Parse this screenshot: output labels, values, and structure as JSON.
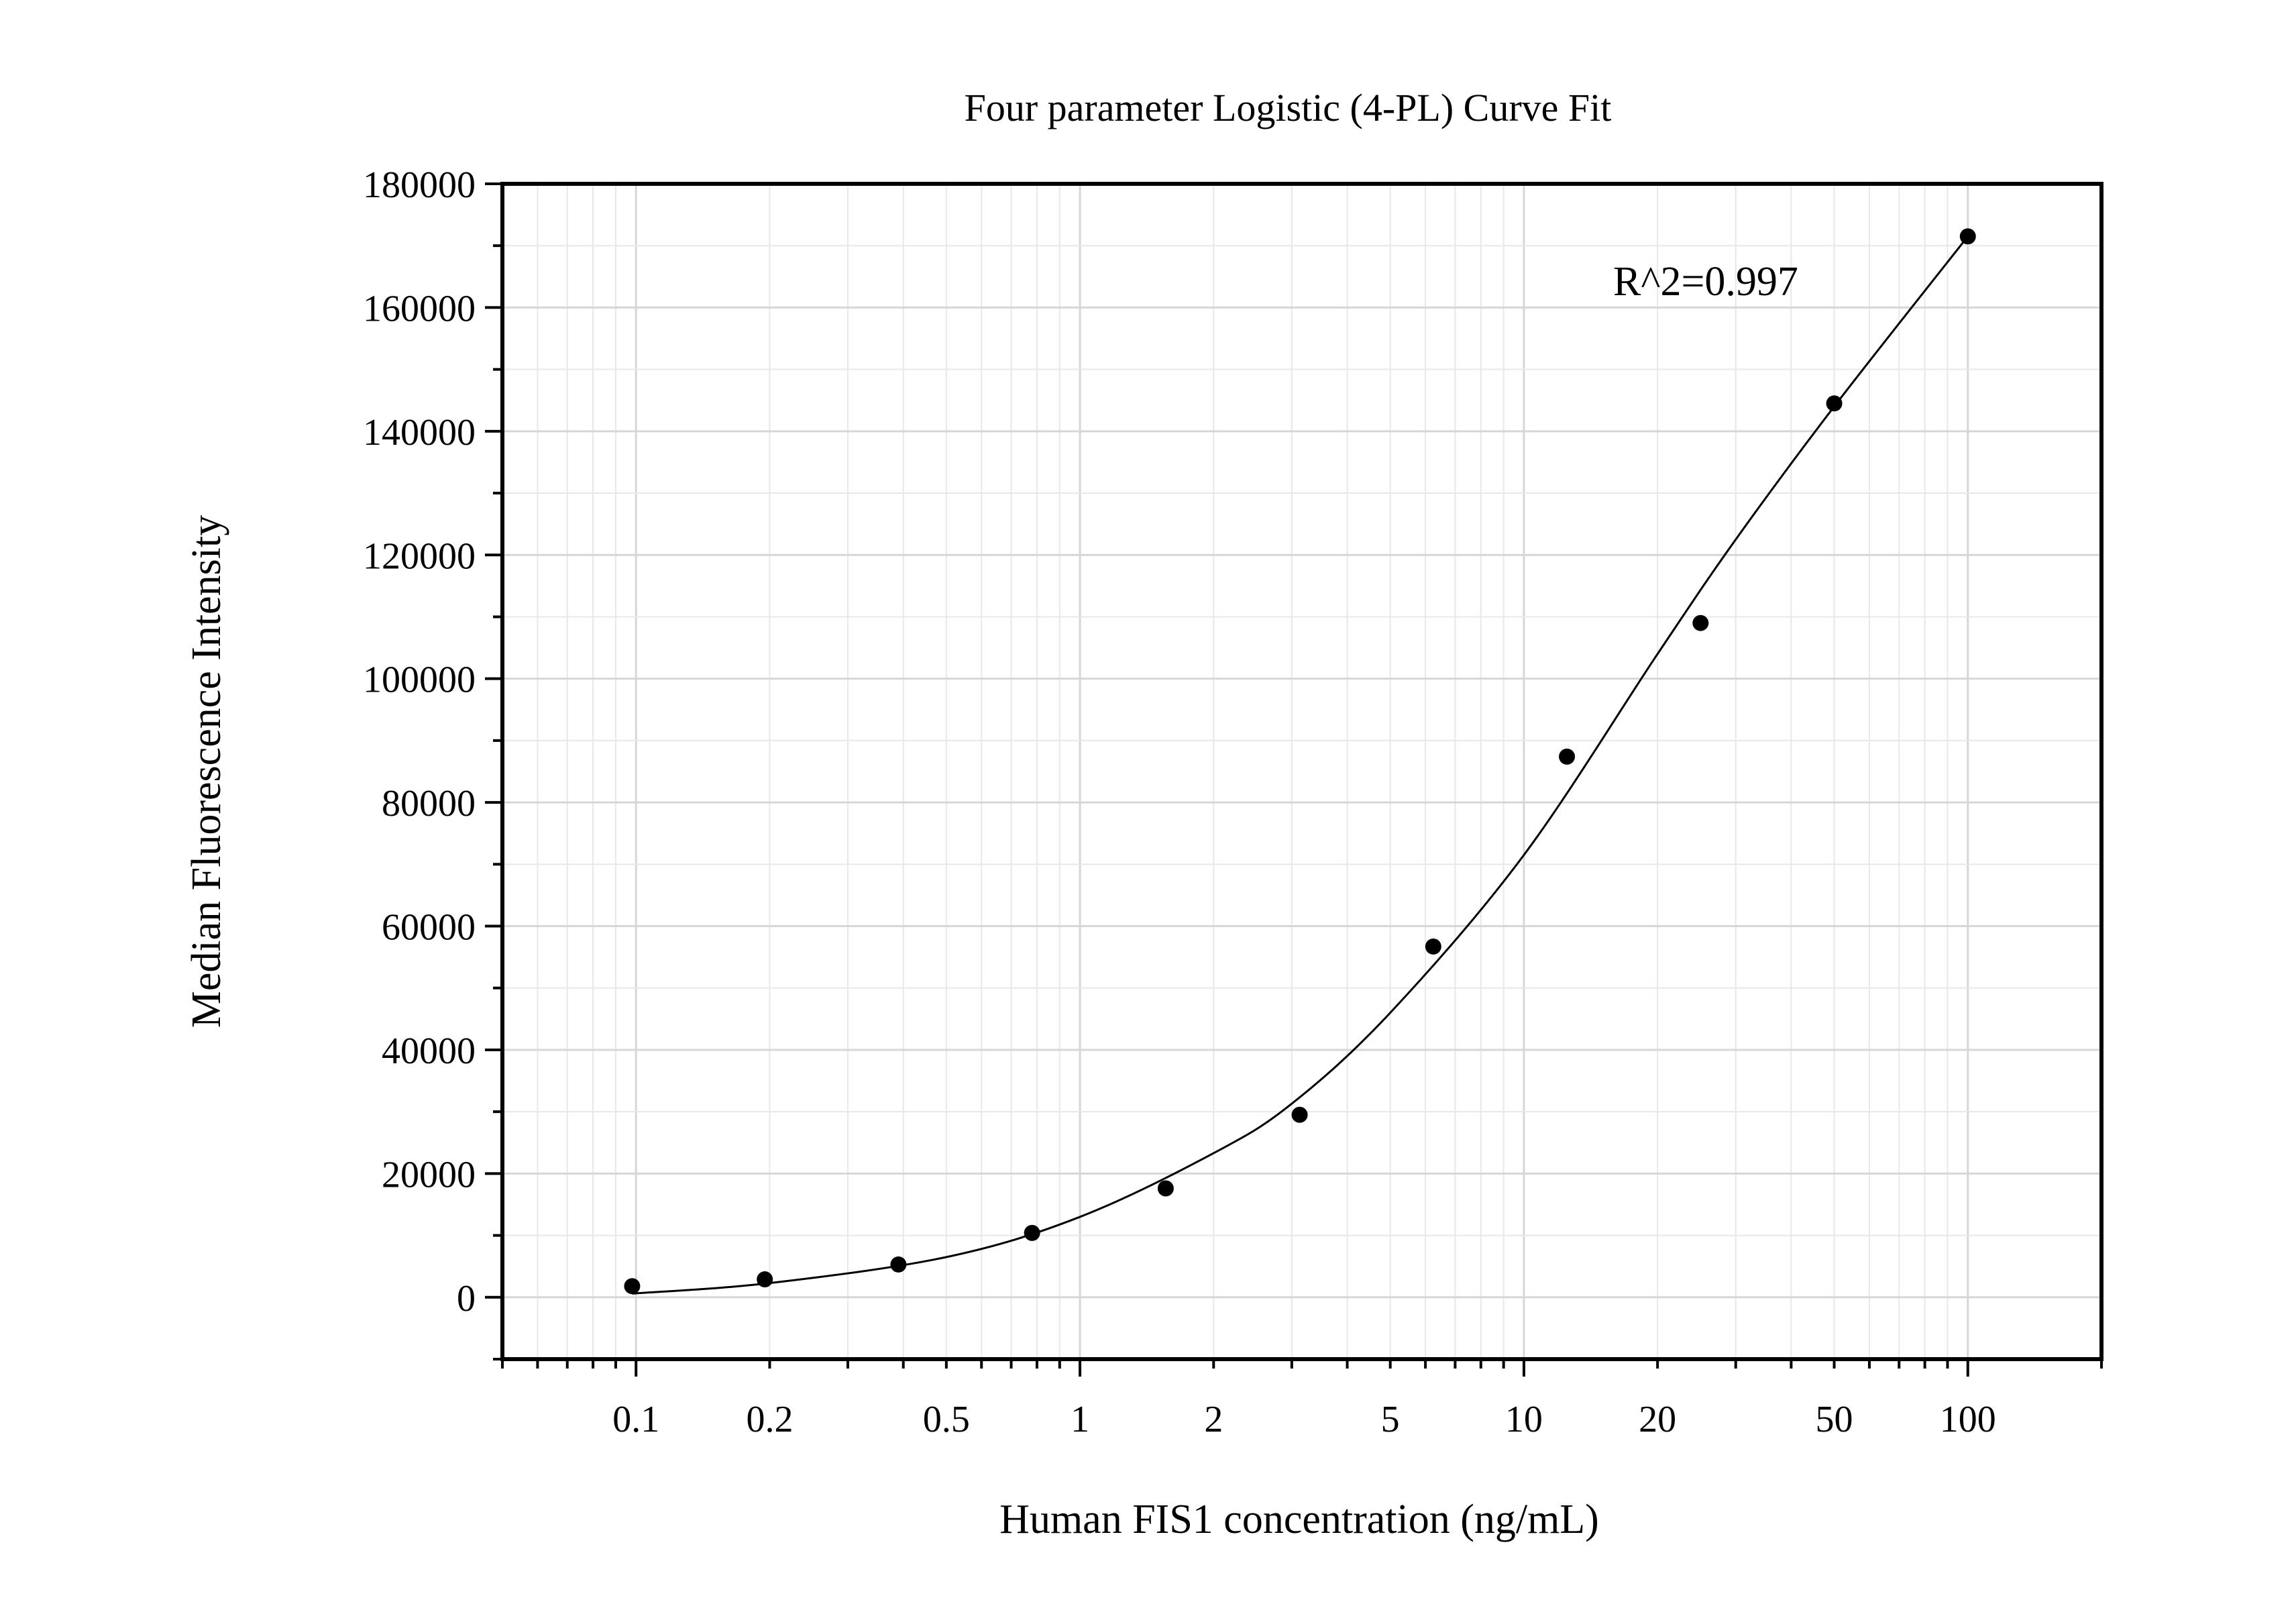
{
  "chart_data": {
    "type": "scatter",
    "title": "Four parameter Logistic (4-PL) Curve Fit",
    "xlabel": "Human FIS1 concentration (ng/mL)",
    "ylabel": "Median Fluorescence Intensity",
    "xscale": "log",
    "xlim": [
      0.05,
      200
    ],
    "ylim": [
      -10000,
      180000
    ],
    "x_ticks": [
      "0.1",
      "0.2",
      "0.5",
      "1",
      "2",
      "5",
      "10",
      "20",
      "50",
      "100"
    ],
    "x_tick_values": [
      0.1,
      0.2,
      0.5,
      1,
      2,
      5,
      10,
      20,
      50,
      100
    ],
    "y_ticks": [
      "0",
      "20000",
      "40000",
      "60000",
      "80000",
      "100000",
      "120000",
      "140000",
      "160000",
      "180000"
    ],
    "y_tick_values": [
      0,
      20000,
      40000,
      60000,
      80000,
      100000,
      120000,
      140000,
      160000,
      180000
    ],
    "grid": true,
    "annotation": "R^2=0.997",
    "series": [
      {
        "type": "scatter",
        "x": [
          0.098,
          0.195,
          0.39,
          0.78,
          1.56,
          3.125,
          6.25,
          12.5,
          25,
          50,
          100
        ],
        "y": [
          1800,
          2900,
          5300,
          10400,
          17600,
          29500,
          56700,
          87400,
          109000,
          144500,
          171500
        ]
      },
      {
        "type": "line",
        "fit": "4-PL",
        "x": [
          0.098,
          0.2,
          0.5,
          1,
          2,
          3,
          5,
          10,
          20,
          30,
          50,
          100
        ],
        "y": [
          600,
          2300,
          6500,
          13000,
          23300,
          31300,
          46000,
          71500,
          104000,
          122500,
          144000,
          171500
        ]
      }
    ]
  }
}
